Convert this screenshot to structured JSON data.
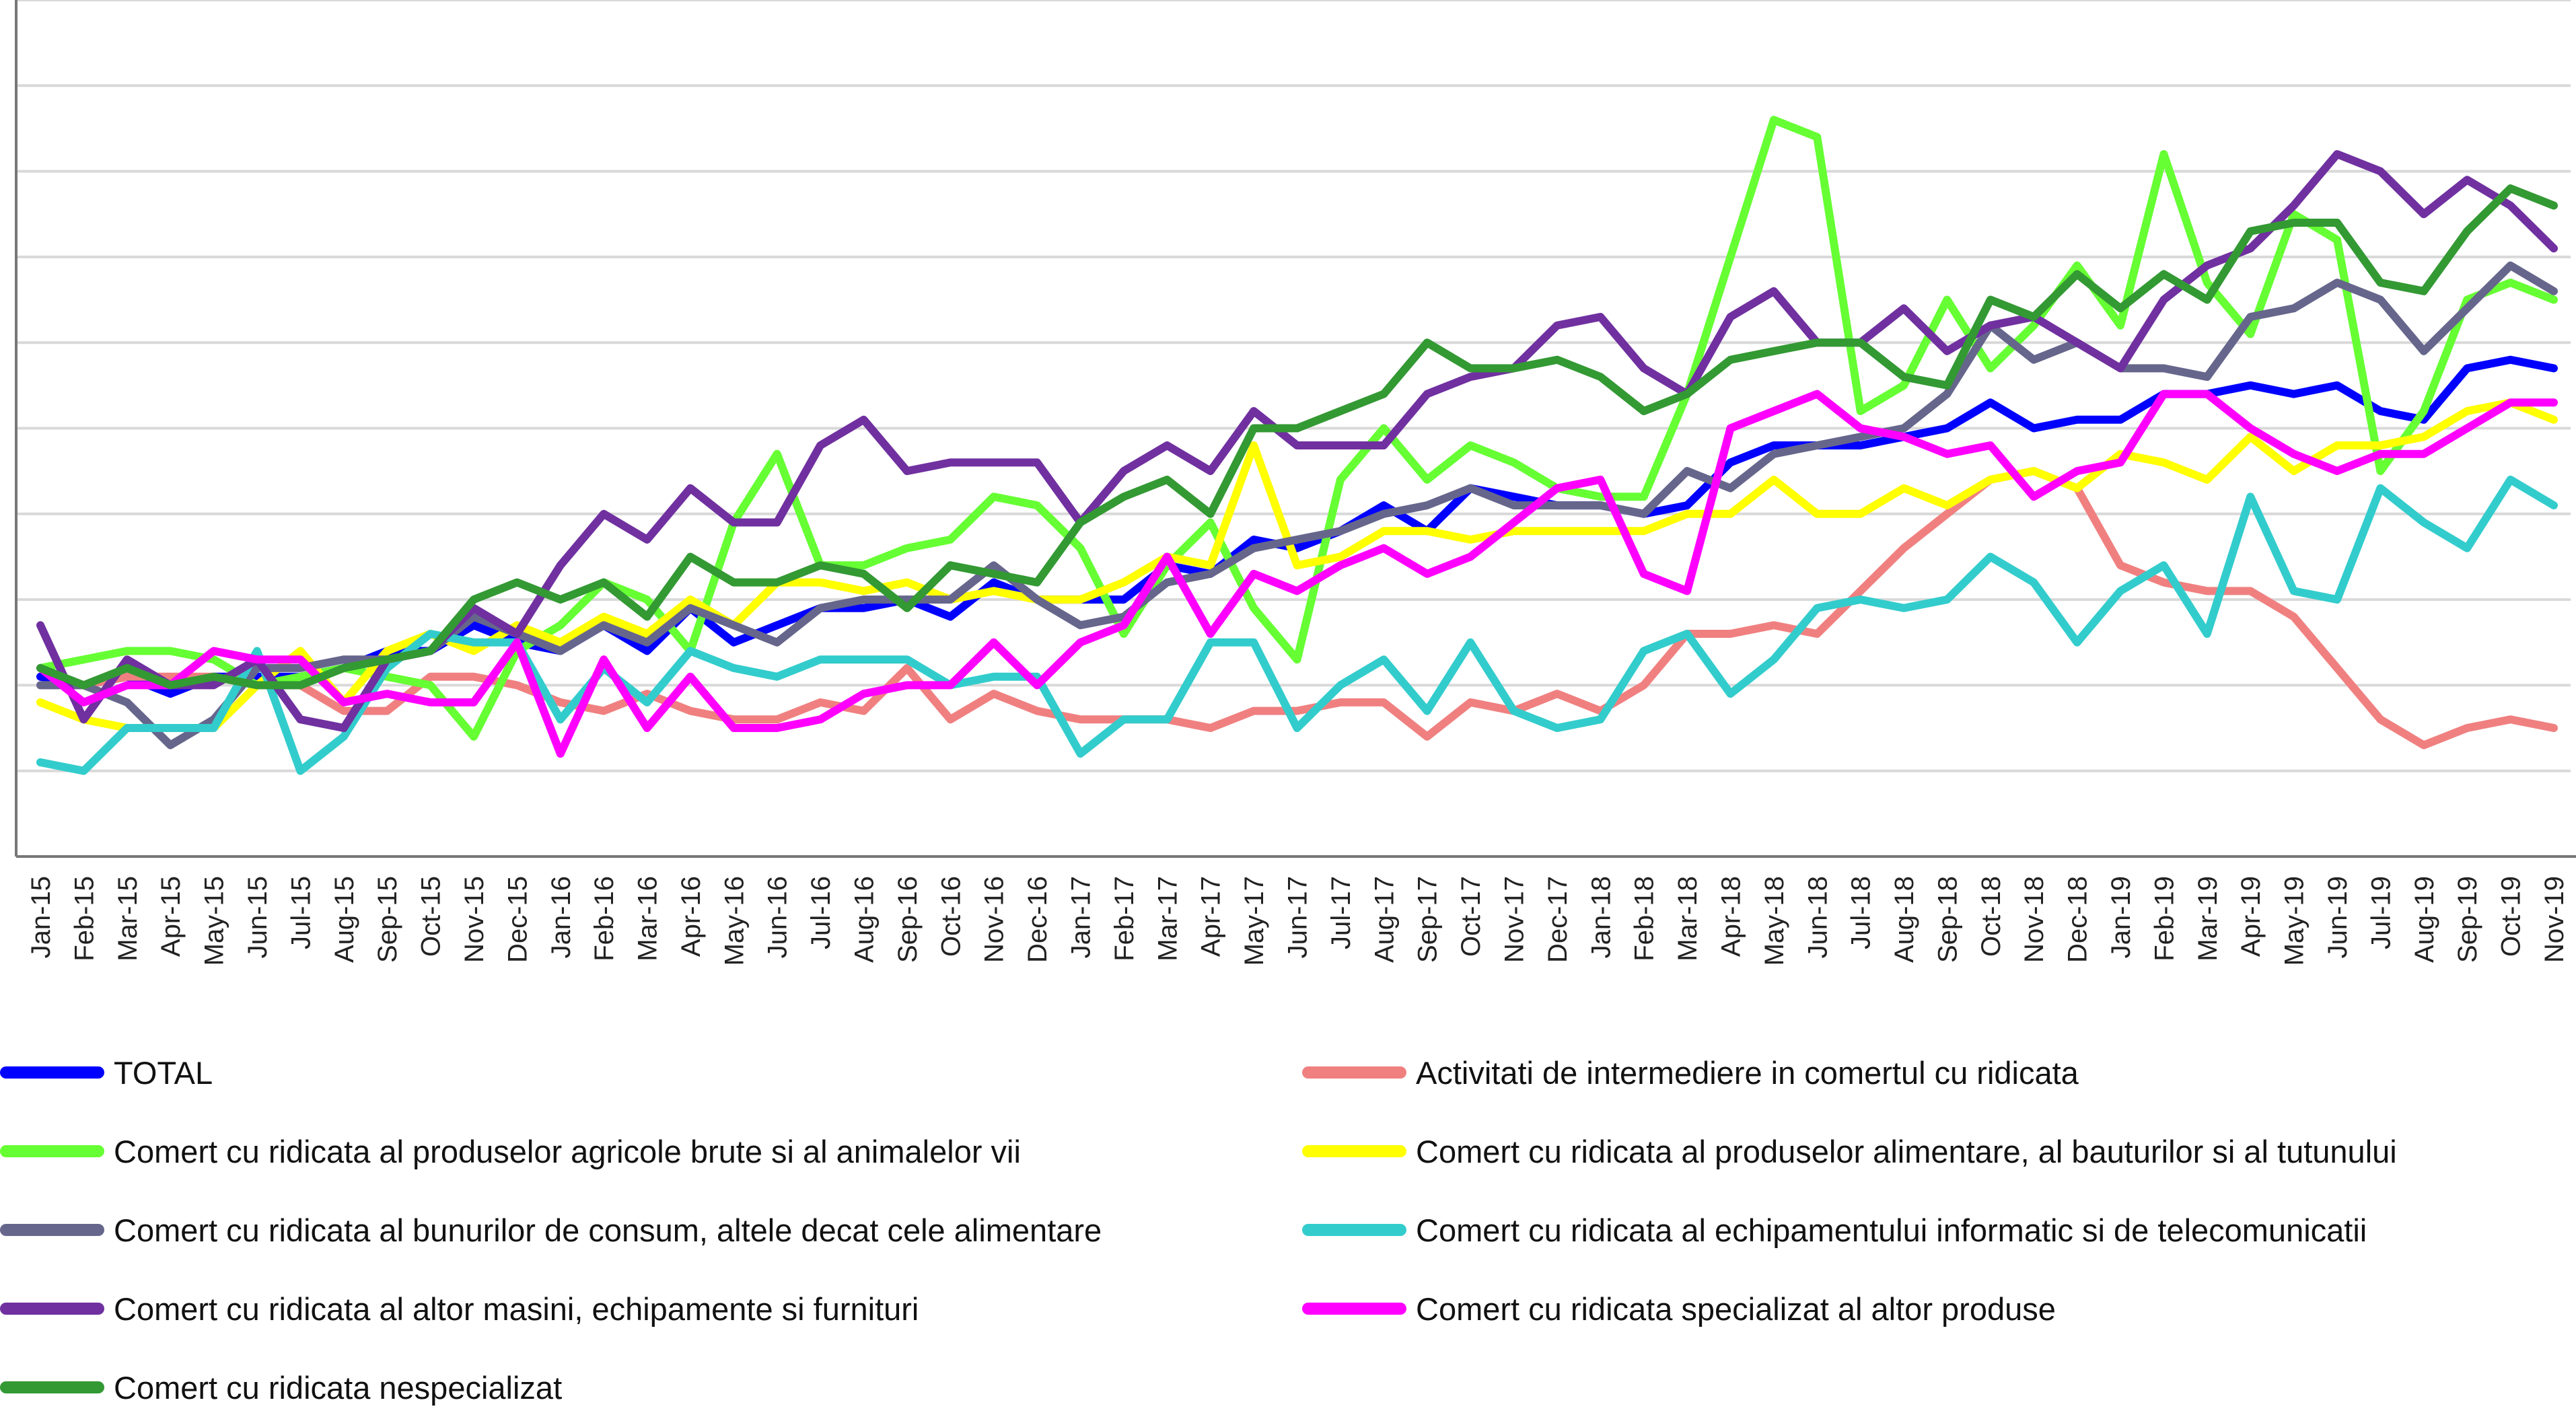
{
  "chart_data": {
    "type": "line",
    "title": "",
    "xlabel": "",
    "ylabel": "",
    "ylim": [
      0,
      10
    ],
    "grid": "horizontal",
    "legend_position": "bottom",
    "categories": [
      "Jan-15",
      "Feb-15",
      "Mar-15",
      "Apr-15",
      "May-15",
      "Jun-15",
      "Jul-15",
      "Aug-15",
      "Sep-15",
      "Oct-15",
      "Nov-15",
      "Dec-15",
      "Jan-16",
      "Feb-16",
      "Mar-16",
      "Apr-16",
      "May-16",
      "Jun-16",
      "Jul-16",
      "Aug-16",
      "Sep-16",
      "Oct-16",
      "Nov-16",
      "Dec-16",
      "Jan-17",
      "Feb-17",
      "Mar-17",
      "Apr-17",
      "May-17",
      "Jun-17",
      "Jul-17",
      "Aug-17",
      "Sep-17",
      "Oct-17",
      "Nov-17",
      "Dec-17",
      "Jan-18",
      "Feb-18",
      "Mar-18",
      "Apr-18",
      "May-18",
      "Jun-18",
      "Jul-18",
      "Aug-18",
      "Sep-18",
      "Oct-18",
      "Nov-18",
      "Dec-18",
      "Jan-19",
      "Feb-19",
      "Mar-19",
      "Apr-19",
      "May-19",
      "Jun-19",
      "Jul-19",
      "Aug-19",
      "Sep-19",
      "Oct-19",
      "Nov-19"
    ],
    "series": [
      {
        "name": "TOTAL",
        "color": "#0000ff",
        "values": [
          2.1,
          2.0,
          2.1,
          1.9,
          2.1,
          2.1,
          2.1,
          2.2,
          2.4,
          2.4,
          2.7,
          2.5,
          2.4,
          2.7,
          2.4,
          2.9,
          2.5,
          2.7,
          2.9,
          2.9,
          3.0,
          2.8,
          3.2,
          3.0,
          3.0,
          3.0,
          3.4,
          3.3,
          3.7,
          3.6,
          3.8,
          4.1,
          3.8,
          4.3,
          4.2,
          4.1,
          4.1,
          4.0,
          4.1,
          4.6,
          4.8,
          4.8,
          4.8,
          4.9,
          5.0,
          5.3,
          5.0,
          5.1,
          5.1,
          5.4,
          5.4,
          5.5,
          5.4,
          5.5,
          5.2,
          5.1,
          5.7,
          5.8,
          5.7
        ]
      },
      {
        "name": "Activitati de intermediere in comertul cu ridicata",
        "color": "#f08080",
        "values": [
          2.0,
          2.0,
          2.1,
          2.1,
          2.1,
          2.0,
          2.0,
          1.7,
          1.7,
          2.1,
          2.1,
          2.0,
          1.8,
          1.7,
          1.9,
          1.7,
          1.6,
          1.6,
          1.8,
          1.7,
          2.2,
          1.6,
          1.9,
          1.7,
          1.6,
          1.6,
          1.6,
          1.5,
          1.7,
          1.7,
          1.8,
          1.8,
          1.4,
          1.8,
          1.7,
          1.9,
          1.7,
          2.0,
          2.6,
          2.6,
          2.7,
          2.6,
          3.1,
          3.6,
          4.0,
          4.4,
          4.5,
          4.3,
          3.4,
          3.2,
          3.1,
          3.1,
          2.8,
          2.2,
          1.6,
          1.3,
          1.5,
          1.6,
          1.5
        ]
      },
      {
        "name": "Comert cu ridicata al produselor agricole brute si al animalelor vii",
        "color": "#66ff33",
        "values": [
          2.2,
          2.3,
          2.4,
          2.4,
          2.3,
          2.0,
          2.1,
          2.2,
          2.1,
          2.0,
          1.4,
          2.4,
          2.7,
          3.2,
          3.0,
          2.4,
          3.9,
          4.7,
          3.4,
          3.4,
          3.6,
          3.7,
          4.2,
          4.1,
          3.6,
          2.6,
          3.4,
          3.9,
          2.9,
          2.3,
          4.4,
          5.0,
          4.4,
          4.8,
          4.6,
          4.3,
          4.2,
          4.2,
          5.4,
          7.0,
          8.6,
          8.4,
          5.2,
          5.5,
          6.5,
          5.7,
          6.2,
          6.9,
          6.2,
          8.2,
          6.7,
          6.1,
          7.5,
          7.2,
          4.5,
          5.2,
          6.5,
          6.7,
          6.5
        ]
      },
      {
        "name": "Comert cu ridicata al produselor alimentare, al bauturilor si al tutunului",
        "color": "#ffff00",
        "values": [
          1.8,
          1.6,
          1.5,
          1.5,
          1.5,
          2.0,
          2.4,
          1.8,
          2.4,
          2.6,
          2.4,
          2.7,
          2.5,
          2.8,
          2.6,
          3.0,
          2.7,
          3.2,
          3.2,
          3.1,
          3.2,
          3.0,
          3.1,
          3.0,
          3.0,
          3.2,
          3.5,
          3.4,
          4.8,
          3.4,
          3.5,
          3.8,
          3.8,
          3.7,
          3.8,
          3.8,
          3.8,
          3.8,
          4.0,
          4.0,
          4.4,
          4.0,
          4.0,
          4.3,
          4.1,
          4.4,
          4.5,
          4.3,
          4.7,
          4.6,
          4.4,
          4.9,
          4.5,
          4.8,
          4.8,
          4.9,
          5.2,
          5.3,
          5.1
        ]
      },
      {
        "name": "Comert cu ridicata al bunurilor de consum, altele decat cele alimentare",
        "color": "#66668c",
        "values": [
          2.0,
          2.0,
          1.8,
          1.3,
          1.6,
          2.2,
          2.2,
          2.3,
          2.3,
          2.4,
          2.8,
          2.6,
          2.4,
          2.7,
          2.5,
          2.9,
          2.7,
          2.5,
          2.9,
          3.0,
          3.0,
          3.0,
          3.4,
          3.0,
          2.7,
          2.8,
          3.2,
          3.3,
          3.6,
          3.7,
          3.8,
          4.0,
          4.1,
          4.3,
          4.1,
          4.1,
          4.1,
          4.0,
          4.5,
          4.3,
          4.7,
          4.8,
          4.9,
          5.0,
          5.4,
          6.2,
          5.8,
          6.0,
          5.7,
          5.7,
          5.6,
          6.3,
          6.4,
          6.7,
          6.5,
          5.9,
          6.4,
          6.9,
          6.6
        ]
      },
      {
        "name": "Comert cu ridicata al echipamentului informatic si de telecomunicatii",
        "color": "#33cccc",
        "values": [
          1.1,
          1.0,
          1.5,
          1.5,
          1.5,
          2.4,
          1.0,
          1.4,
          2.2,
          2.6,
          2.5,
          2.5,
          1.6,
          2.2,
          1.8,
          2.4,
          2.2,
          2.1,
          2.3,
          2.3,
          2.3,
          2.0,
          2.1,
          2.1,
          1.2,
          1.6,
          1.6,
          2.5,
          2.5,
          1.5,
          2.0,
          2.3,
          1.7,
          2.5,
          1.7,
          1.5,
          1.6,
          2.4,
          2.6,
          1.9,
          2.3,
          2.9,
          3.0,
          2.9,
          3.0,
          3.5,
          3.2,
          2.5,
          3.1,
          3.4,
          2.6,
          4.2,
          3.1,
          3.0,
          4.3,
          3.9,
          3.6,
          4.4,
          4.1
        ]
      },
      {
        "name": "Comert cu ridicata al altor masini, echipamente si furnituri",
        "color": "#7030a0",
        "values": [
          2.7,
          1.6,
          2.3,
          2.0,
          2.0,
          2.3,
          1.6,
          1.5,
          2.3,
          2.4,
          2.9,
          2.6,
          3.4,
          4.0,
          3.7,
          4.3,
          3.9,
          3.9,
          4.8,
          5.1,
          4.5,
          4.6,
          4.6,
          4.6,
          3.9,
          4.5,
          4.8,
          4.5,
          5.2,
          4.8,
          4.8,
          4.8,
          5.4,
          5.6,
          5.7,
          6.2,
          6.3,
          5.7,
          5.4,
          6.3,
          6.6,
          6.0,
          6.0,
          6.4,
          5.9,
          6.2,
          6.3,
          6.0,
          5.7,
          6.5,
          6.9,
          7.1,
          7.6,
          8.2,
          8.0,
          7.5,
          7.9,
          7.6,
          7.1
        ]
      },
      {
        "name": "Comert cu ridicata specializat al altor produse",
        "color": "#ff00ff",
        "values": [
          2.2,
          1.8,
          2.0,
          2.0,
          2.4,
          2.3,
          2.3,
          1.8,
          1.9,
          1.8,
          1.8,
          2.5,
          1.2,
          2.3,
          1.5,
          2.1,
          1.5,
          1.5,
          1.6,
          1.9,
          2.0,
          2.0,
          2.5,
          2.0,
          2.5,
          2.7,
          3.5,
          2.6,
          3.3,
          3.1,
          3.4,
          3.6,
          3.3,
          3.5,
          3.9,
          4.3,
          4.4,
          3.3,
          3.1,
          5.0,
          5.2,
          5.4,
          5.0,
          4.9,
          4.7,
          4.8,
          4.2,
          4.5,
          4.6,
          5.4,
          5.4,
          5.0,
          4.7,
          4.5,
          4.7,
          4.7,
          5.0,
          5.3,
          5.3
        ]
      },
      {
        "name": "Comert cu ridicata nespecializat",
        "color": "#339933",
        "values": [
          2.2,
          2.0,
          2.2,
          2.0,
          2.1,
          2.0,
          2.0,
          2.2,
          2.3,
          2.4,
          3.0,
          3.2,
          3.0,
          3.2,
          2.8,
          3.5,
          3.2,
          3.2,
          3.4,
          3.3,
          2.9,
          3.4,
          3.3,
          3.2,
          3.9,
          4.2,
          4.4,
          4.0,
          5.0,
          5.0,
          5.2,
          5.4,
          6.0,
          5.7,
          5.7,
          5.8,
          5.6,
          5.2,
          5.4,
          5.8,
          5.9,
          6.0,
          6.0,
          5.6,
          5.5,
          6.5,
          6.3,
          6.8,
          6.4,
          6.8,
          6.5,
          7.3,
          7.4,
          7.4,
          6.7,
          6.6,
          7.3,
          7.8,
          7.6
        ]
      }
    ]
  }
}
